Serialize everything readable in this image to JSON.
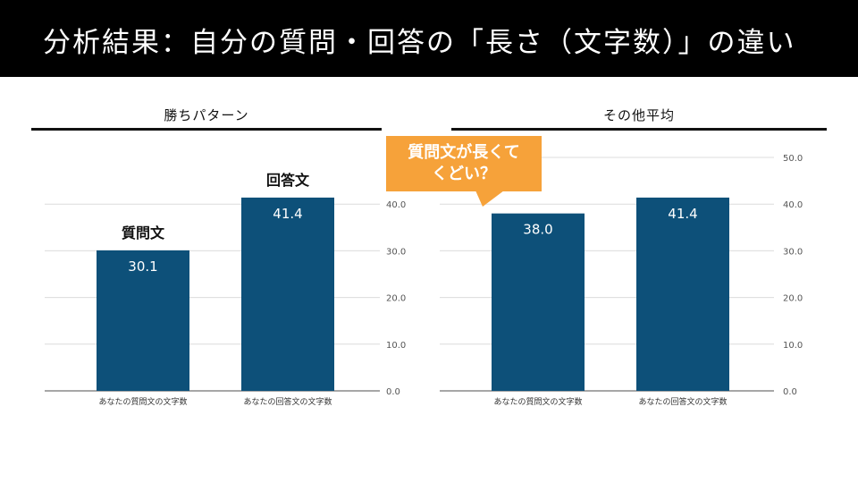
{
  "header": {
    "title": "分析結果：自分の質問・回答の「長さ（文字数）」の違い"
  },
  "panels": [
    {
      "heading": "勝ちパターン"
    },
    {
      "heading": "その他平均"
    }
  ],
  "callout": {
    "line1": "質問文が長くて",
    "line2": "くどい？"
  },
  "colors": {
    "bar": "#0d5079",
    "callout": "#f6a23a",
    "header_bg": "#000000"
  },
  "chart_data": [
    {
      "type": "bar",
      "title": "",
      "categories": [
        "あなたの質問文の文字数",
        "あなたの回答文の文字数"
      ],
      "values": [
        30.1,
        41.4
      ],
      "bar_annotations": [
        "質問文",
        "回答文"
      ],
      "ylim": [
        0,
        50
      ],
      "yticks": [
        "0.0",
        "10.0",
        "20.0",
        "30.0",
        "40.0"
      ],
      "grid": true
    },
    {
      "type": "bar",
      "title": "",
      "categories": [
        "あなたの質問文の文字数",
        "あなたの回答文の文字数"
      ],
      "values": [
        38.0,
        41.4
      ],
      "ylim": [
        0,
        50
      ],
      "yticks": [
        "0.0",
        "10.0",
        "20.0",
        "30.0",
        "40.0",
        "50.0"
      ],
      "grid": true
    }
  ]
}
